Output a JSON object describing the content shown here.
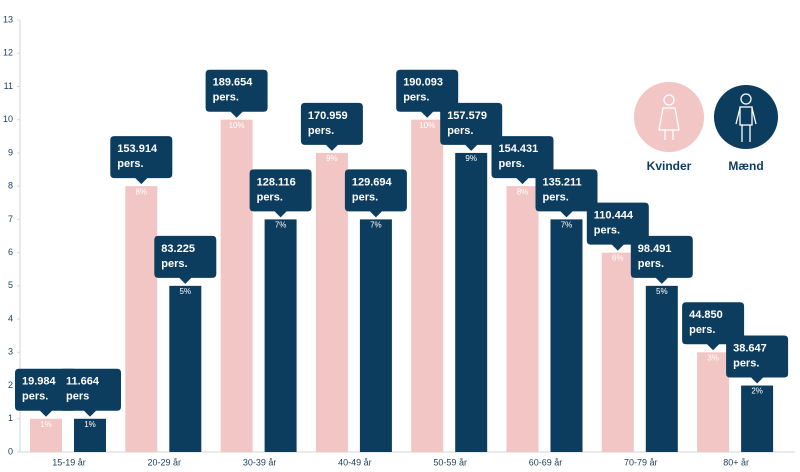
{
  "chart_data": {
    "type": "bar",
    "categories": [
      "15-19 år",
      "20-29 år",
      "30-39 år",
      "40-49 år",
      "50-59 år",
      "60-69 år",
      "70-79 år",
      "80+ år"
    ],
    "series": [
      {
        "name": "Kvinder",
        "color": "#f2c6c4",
        "values": [
          1,
          8,
          10,
          9,
          10,
          8,
          6,
          3
        ],
        "value_labels": [
          "1%",
          "8%",
          "10%",
          "9%",
          "10%",
          "8%",
          "6%",
          "3%"
        ],
        "callouts": [
          {
            "number": "19.984",
            "unit": "pers."
          },
          {
            "number": "153.914",
            "unit": "pers."
          },
          {
            "number": "189.654",
            "unit": "pers."
          },
          {
            "number": "170.959",
            "unit": "pers."
          },
          {
            "number": "190.093",
            "unit": "pers."
          },
          {
            "number": "154.431",
            "unit": "pers."
          },
          {
            "number": "110.444",
            "unit": "pers."
          },
          {
            "number": "44.850",
            "unit": "pers."
          }
        ]
      },
      {
        "name": "Mænd",
        "color": "#0c3d5f",
        "values": [
          1,
          5,
          7,
          7,
          9,
          7,
          5,
          2
        ],
        "value_labels": [
          "1%",
          "5%",
          "7%",
          "7%",
          "9%",
          "7%",
          "5%",
          "2%"
        ],
        "callouts": [
          {
            "number": "11.664",
            "unit": "pers"
          },
          {
            "number": "83.225",
            "unit": "pers."
          },
          {
            "number": "128.116",
            "unit": "pers."
          },
          {
            "number": "129.694",
            "unit": "pers."
          },
          {
            "number": "157.579",
            "unit": "pers."
          },
          {
            "number": "135.211",
            "unit": "pers."
          },
          {
            "number": "98.491",
            "unit": "pers."
          },
          {
            "number": "38.647",
            "unit": "pers."
          }
        ]
      }
    ],
    "ylim": [
      0,
      13
    ],
    "yticks": [
      0,
      1,
      2,
      3,
      4,
      5,
      6,
      7,
      8,
      9,
      10,
      11,
      12,
      13
    ],
    "grid": false,
    "legend": "top-right"
  }
}
